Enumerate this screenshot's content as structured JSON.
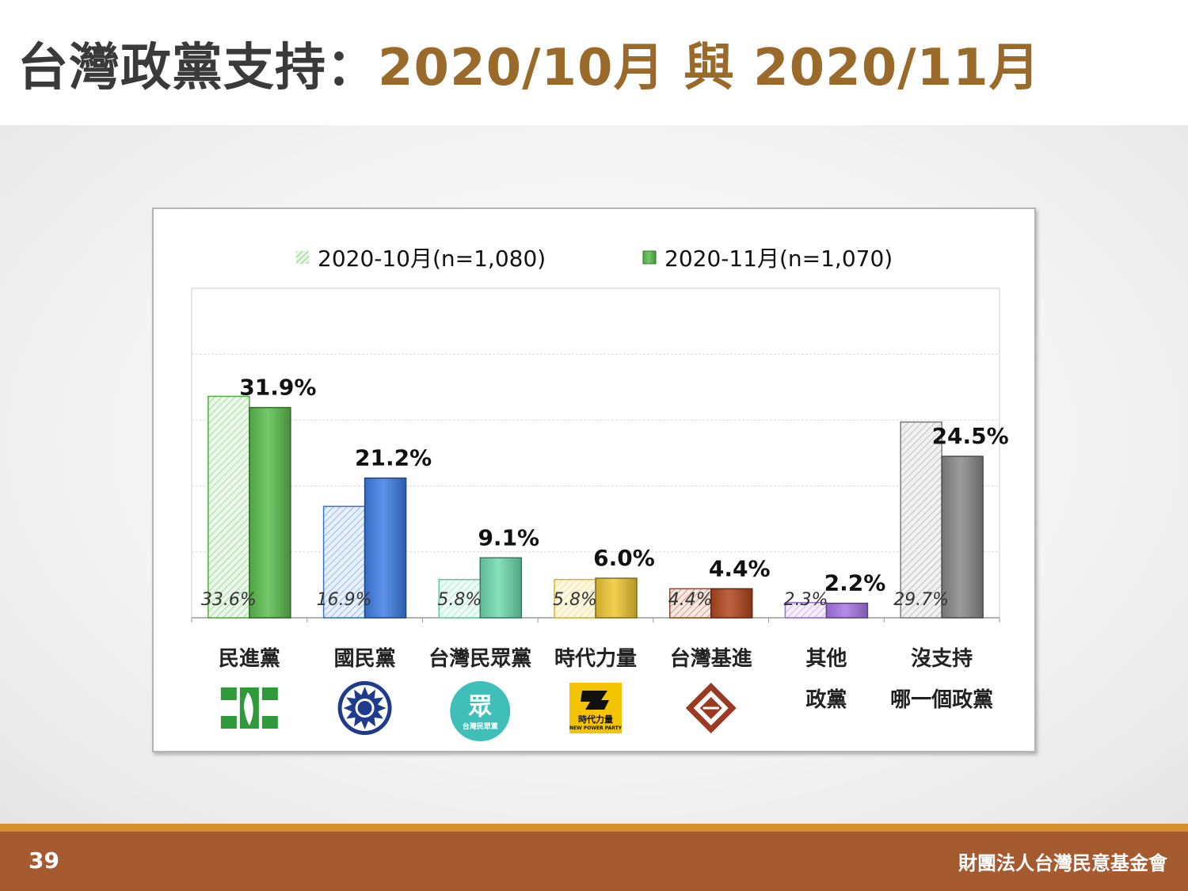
{
  "title": {
    "prefix": "台灣政黨支持：",
    "accent": "2020/10月 與 2020/11月"
  },
  "footer": {
    "page_number": "39",
    "organization": "財團法人台灣民意基金會"
  },
  "colors": {
    "title_text": "#3a3a3a",
    "title_accent": "#9a6a2a",
    "footer_bar": "#a65a30",
    "footer_line": "#d8902e"
  },
  "chart_data": {
    "type": "bar",
    "ylim": [
      0,
      50
    ],
    "grid": true,
    "legend_placement": "top",
    "series": [
      {
        "name": "2020-10月(n=1,080)",
        "style": "hatched-light",
        "values": [
          33.6,
          16.9,
          5.8,
          5.8,
          4.4,
          2.3,
          29.7
        ],
        "labels": [
          "33.6%",
          "16.9%",
          "5.8%",
          "5.8%",
          "4.4%",
          "2.3%",
          "29.7%"
        ]
      },
      {
        "name": "2020-11月(n=1,070)",
        "style": "solid",
        "values": [
          31.9,
          21.2,
          9.1,
          6.0,
          4.4,
          2.2,
          24.5
        ],
        "labels": [
          "31.9%",
          "21.2%",
          "9.1%",
          "6.0%",
          "4.4%",
          "2.2%",
          "24.5%"
        ]
      }
    ],
    "categories": [
      {
        "lines": [
          "民進黨"
        ],
        "color": "#5cbf4f",
        "logo": "dpp-logo-icon"
      },
      {
        "lines": [
          "國民黨"
        ],
        "color": "#3f7fe6",
        "logo": "kmt-logo-icon"
      },
      {
        "lines": [
          "台灣民眾黨"
        ],
        "color": "#6fdcb0",
        "logo": "tpp-logo-icon",
        "logo_text": "眾",
        "logo_sub": "台灣民眾黨"
      },
      {
        "lines": [
          "時代力量"
        ],
        "color": "#f0c832",
        "logo": "npp-logo-icon",
        "logo_text": "時代力量",
        "logo_sub": "NEW POWER PARTY"
      },
      {
        "lines": [
          "台灣基進"
        ],
        "color": "#b3471e",
        "logo": "tsp-logo-icon"
      },
      {
        "lines": [
          "其他",
          "政黨"
        ],
        "color": "#a878e8",
        "logo": ""
      },
      {
        "lines": [
          "沒支持",
          "哪一個政黨"
        ],
        "color": "#8a8a8a",
        "logo": ""
      }
    ]
  }
}
